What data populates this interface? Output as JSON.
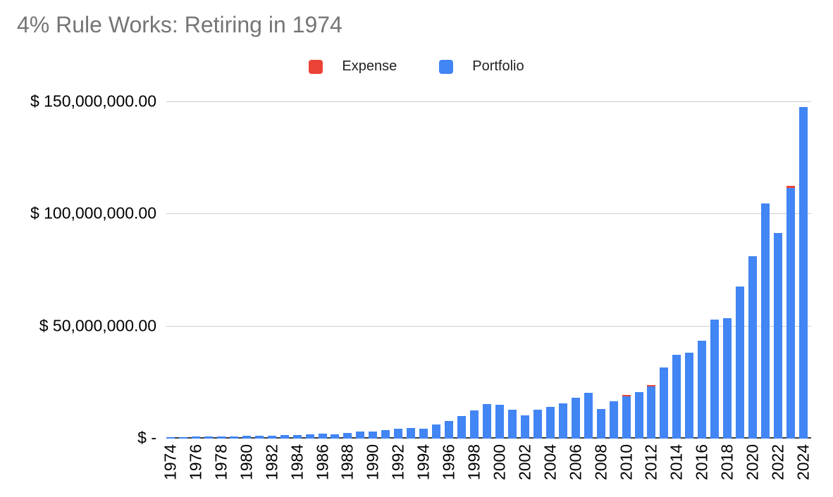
{
  "title": "4% Rule Works: Retiring in 1974",
  "legend": [
    {
      "label": "Expense",
      "color": "#EA4335"
    },
    {
      "label": "Portfolio",
      "color": "#4285F4"
    }
  ],
  "colors": {
    "portfolio": "#4285F4",
    "expense": "#EA4335",
    "title_text": "#757575",
    "axis_text": "#000000",
    "gridline": "#cccccc",
    "axis_line": "#3c4043",
    "background": "#ffffff"
  },
  "chart_data": {
    "type": "bar",
    "stacked": true,
    "title": "4% Rule Works: Retiring in 1974",
    "xlabel": "",
    "ylabel": "",
    "values_unit": "USD millions",
    "ylim_millions": [
      0,
      150
    ],
    "grid": "horizontal",
    "legend_position": "top-center",
    "x_tick_step_years": 2,
    "categories": [
      1974,
      1975,
      1976,
      1977,
      1978,
      1979,
      1980,
      1981,
      1982,
      1983,
      1984,
      1985,
      1986,
      1987,
      1988,
      1989,
      1990,
      1991,
      1992,
      1993,
      1994,
      1995,
      1996,
      1997,
      1998,
      1999,
      2000,
      2001,
      2002,
      2003,
      2004,
      2005,
      2006,
      2007,
      2008,
      2009,
      2010,
      2011,
      2012,
      2013,
      2014,
      2015,
      2016,
      2017,
      2018,
      2019,
      2020,
      2021,
      2022,
      2023,
      2024
    ],
    "series": [
      {
        "name": "Expense",
        "color": "#EA4335",
        "values": [
          0,
          0,
          0,
          0,
          0,
          0,
          0,
          0,
          0,
          0,
          0,
          0,
          0,
          0,
          0,
          0,
          0,
          0,
          0,
          0,
          0,
          0,
          0,
          0,
          0,
          0,
          0,
          0,
          0,
          0,
          0,
          0,
          0,
          0,
          0,
          0,
          0.6,
          0,
          0.7,
          0,
          0,
          0,
          0,
          0,
          0,
          0,
          0,
          0,
          0,
          0.9,
          0
        ]
      },
      {
        "name": "Portfolio",
        "color": "#4285F4",
        "values": [
          0.35,
          0.45,
          0.5,
          0.5,
          0.55,
          0.65,
          0.9,
          0.9,
          1.0,
          1.1,
          1.1,
          1.5,
          1.8,
          1.7,
          2.2,
          2.9,
          2.7,
          3.4,
          4.0,
          4.3,
          4.2,
          5.9,
          7.4,
          9.7,
          12.3,
          15.2,
          14.6,
          12.5,
          10.0,
          12.4,
          13.8,
          15.3,
          18.0,
          20.2,
          12.8,
          16.3,
          18.6,
          20.3,
          22.9,
          31.3,
          36.9,
          38.1,
          43.3,
          52.7,
          53.2,
          67.5,
          80.9,
          104.4,
          91.3,
          111.6,
          147.5
        ]
      }
    ],
    "y_ticks": [
      {
        "label": "$ 150,000,000.00",
        "value_millions": 150
      },
      {
        "label": "$ 100,000,000.00",
        "value_millions": 100
      },
      {
        "label": "$ 50,000,000.00",
        "value_millions": 50
      },
      {
        "label": "$ -",
        "value_millions": 0
      }
    ]
  }
}
